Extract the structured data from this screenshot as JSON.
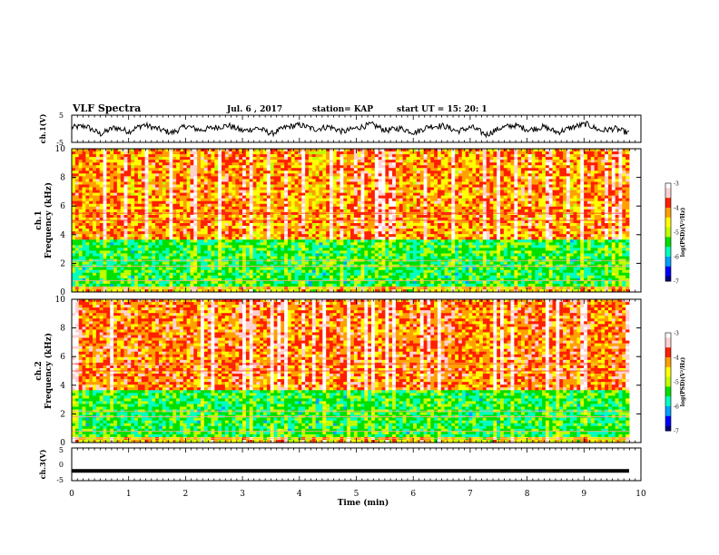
{
  "header": {
    "title": "VLF Spectra",
    "date": "Jul. 6 , 2017",
    "station": "station= KAP",
    "start": "start UT = 15: 20: 1"
  },
  "chart_data": [
    {
      "id": "ch1_waveform",
      "type": "line",
      "ylabel": "ch.1(V)",
      "ylim": [
        -5,
        5
      ],
      "yticks": [
        "5",
        "-5"
      ],
      "xlim": [
        0,
        10
      ],
      "series": [
        {
          "values": [
            0.5,
            1.0,
            -2.0,
            0.5,
            -1.0,
            1.5,
            0.0,
            -1.5,
            1.0,
            -0.5,
            0.5,
            1.2,
            -0.8,
            0.3,
            -1.8,
            0.6,
            1.4,
            -0.2,
            0.8,
            -1.1,
            0.4,
            1.6,
            -0.6,
            0.2,
            -1.4,
            0.9,
            1.1,
            -0.9,
            0.6,
            -2.2,
            0.3,
            1.3,
            -0.4,
            0.7,
            -1.3,
            0.5,
            1.8,
            -0.7,
            0.1,
            -1.6
          ]
        }
      ]
    },
    {
      "id": "ch1_spectrogram",
      "type": "heatmap",
      "ylabel": "ch.1\nFrequency (kHz)",
      "ylim": [
        0,
        10
      ],
      "yticks": [
        "0",
        "2",
        "4",
        "6",
        "8",
        "10"
      ],
      "xlim": [
        0,
        10
      ],
      "colorbar": {
        "label": "log(PSD)(V²/Hz)",
        "range": [
          -7,
          -3
        ],
        "ticks": [
          "-3",
          "-4",
          "-5",
          "-6",
          "-7"
        ]
      }
    },
    {
      "id": "ch2_spectrogram",
      "type": "heatmap",
      "ylabel": "ch.2\nFrequency (kHz)",
      "ylim": [
        0,
        10
      ],
      "yticks": [
        "0",
        "2",
        "4",
        "6",
        "8",
        "10"
      ],
      "xlim": [
        0,
        10
      ],
      "colorbar": {
        "label": "log(PSD)(V²/Hz)",
        "range": [
          -7,
          -3
        ],
        "ticks": [
          "-3",
          "-4",
          "-5",
          "-6",
          "-7"
        ]
      }
    },
    {
      "id": "ch3_waveform",
      "type": "line",
      "ylabel": "ch.3(V)",
      "ylim": [
        -5,
        5
      ],
      "yticks": [
        "5",
        "0",
        "-5"
      ],
      "xlim": [
        0,
        10
      ],
      "series": [
        {
          "values": [
            -2,
            -2
          ]
        }
      ]
    }
  ],
  "xaxis": {
    "label": "Time (min)",
    "ticks": [
      "0",
      "1",
      "2",
      "3",
      "4",
      "5",
      "6",
      "7",
      "8",
      "9",
      "10"
    ]
  },
  "colors": {
    "colormap": [
      "#000080",
      "#0000ff",
      "#00a0ff",
      "#00ffc0",
      "#00e000",
      "#c0ff00",
      "#ffff00",
      "#ffa000",
      "#ff2000",
      "#ffd0d0",
      "#ffffff"
    ]
  }
}
